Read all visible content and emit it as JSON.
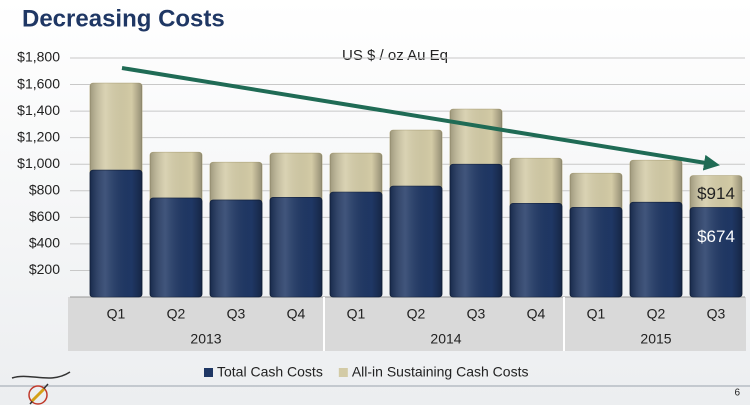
{
  "chart_data": {
    "type": "overlap_bar",
    "title": "Decreasing Costs",
    "subtitle": "US $ / oz Au Eq",
    "page_number": "6",
    "categories": [
      "Q1",
      "Q2",
      "Q3",
      "Q4",
      "Q1",
      "Q2",
      "Q3",
      "Q4",
      "Q1",
      "Q2",
      "Q3"
    ],
    "groups": [
      {
        "name": "2013",
        "size": 4
      },
      {
        "name": "2014",
        "size": 4
      },
      {
        "name": "2015",
        "size": 3
      }
    ],
    "series": [
      {
        "name": "All-in Sustaining Cash Costs",
        "color": "#d3cba6",
        "values": [
          1611,
          1090,
          1015,
          1083,
          1083,
          1257,
          1415,
          1045,
          932,
          1030,
          914
        ],
        "value_labels": [
          null,
          null,
          null,
          null,
          null,
          null,
          null,
          null,
          null,
          null,
          "$914"
        ]
      },
      {
        "name": "Total Cash Costs",
        "color": "#1f3764",
        "values": [
          955,
          745,
          730,
          750,
          790,
          835,
          1000,
          705,
          675,
          713,
          674
        ],
        "value_labels": [
          null,
          null,
          null,
          null,
          null,
          null,
          null,
          null,
          null,
          null,
          "$674"
        ]
      }
    ],
    "legend_order": [
      1,
      0
    ],
    "ylim": [
      0,
      1800
    ],
    "yticks": [
      {
        "value": 200,
        "label": "$200"
      },
      {
        "value": 400,
        "label": "$400"
      },
      {
        "value": 600,
        "label": "$600"
      },
      {
        "value": 800,
        "label": "$800"
      },
      {
        "value": 1000,
        "label": "$1,000"
      },
      {
        "value": 1200,
        "label": "$1,200"
      },
      {
        "value": 1400,
        "label": "$1,400"
      },
      {
        "value": 1600,
        "label": "$1,600"
      },
      {
        "value": 1800,
        "label": "$1,800"
      }
    ],
    "grid": true
  }
}
